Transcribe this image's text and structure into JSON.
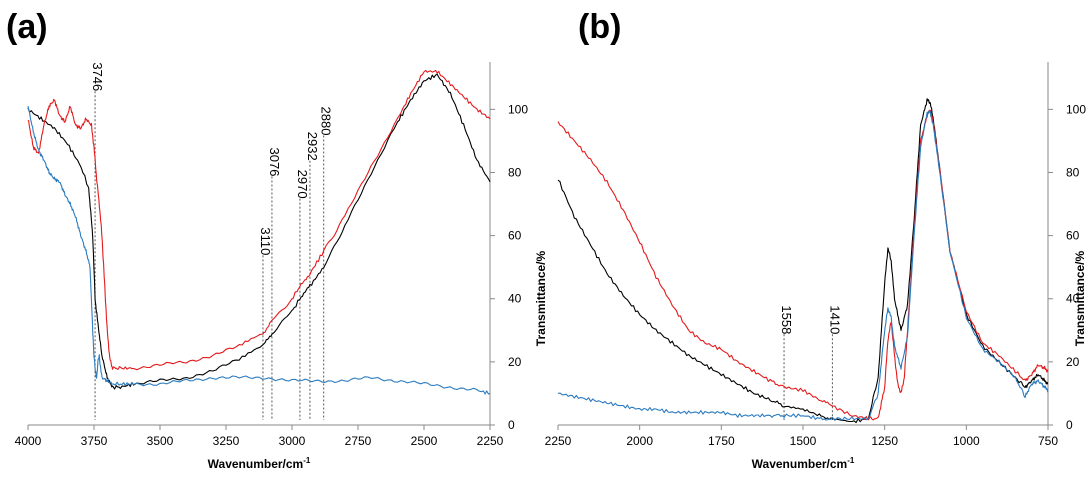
{
  "panel_labels": [
    "(a)",
    "(b)"
  ],
  "chart_data": [
    {
      "type": "line",
      "panel": "(a)",
      "xlabel": "Wavenumber/cm",
      "xlabel_superscript": "-1",
      "ylabel": "Transmittance/%",
      "xlim": [
        4000,
        2250
      ],
      "x_reversed": true,
      "ylim": [
        0,
        115
      ],
      "x_ticks": [
        4000,
        3750,
        3500,
        3250,
        3000,
        2750,
        2500,
        2250
      ],
      "y_ticks": [
        0,
        20,
        40,
        60,
        80,
        100
      ],
      "y_axis_side": "right",
      "grid": false,
      "colors": {
        "black": "#000000",
        "red": "#e41a1c",
        "blue": "#2b7bbf"
      },
      "annotations": [
        {
          "label": "3746",
          "x": 3746,
          "y_top": 107
        },
        {
          "label": "3110",
          "x": 3110,
          "y_top": 55
        },
        {
          "label": "3076",
          "x": 3076,
          "y_top": 80
        },
        {
          "label": "2970",
          "x": 2970,
          "y_top": 73
        },
        {
          "label": "2932",
          "x": 2932,
          "y_top": 85
        },
        {
          "label": "2880",
          "x": 2880,
          "y_top": 93
        }
      ],
      "series": [
        {
          "color": "black",
          "x": [
            4000,
            3950,
            3900,
            3850,
            3800,
            3770,
            3755,
            3746,
            3735,
            3720,
            3700,
            3680,
            3650,
            3600,
            3500,
            3400,
            3300,
            3200,
            3110,
            3076,
            3000,
            2970,
            2932,
            2880,
            2800,
            2700,
            2600,
            2550,
            2500,
            2450,
            2400,
            2350,
            2300,
            2250
          ],
          "y": [
            100,
            97,
            94,
            89,
            82,
            75,
            60,
            40,
            32,
            22,
            15,
            12,
            12,
            13,
            14,
            15,
            17,
            21,
            25,
            29,
            36,
            40,
            44,
            50,
            63,
            80,
            96,
            103,
            109,
            111,
            105,
            95,
            84,
            77
          ]
        },
        {
          "color": "red",
          "x": [
            4000,
            3980,
            3960,
            3940,
            3920,
            3900,
            3880,
            3860,
            3840,
            3820,
            3800,
            3780,
            3760,
            3750,
            3740,
            3730,
            3720,
            3710,
            3700,
            3690,
            3680,
            3650,
            3600,
            3500,
            3400,
            3300,
            3200,
            3110,
            3076,
            3000,
            2970,
            2932,
            2880,
            2800,
            2700,
            2600,
            2550,
            2500,
            2450,
            2400,
            2350,
            2300,
            2250
          ],
          "y": [
            97,
            88,
            86,
            95,
            101,
            103,
            98,
            96,
            101,
            95,
            94,
            97,
            95,
            88,
            78,
            70,
            60,
            45,
            30,
            21,
            18,
            18,
            18,
            19,
            20,
            22,
            25,
            29,
            33,
            40,
            44,
            48,
            55,
            66,
            82,
            97,
            105,
            112,
            112,
            108,
            104,
            100,
            97
          ]
        },
        {
          "color": "blue",
          "x": [
            4000,
            3980,
            3960,
            3940,
            3920,
            3900,
            3880,
            3860,
            3840,
            3820,
            3800,
            3780,
            3765,
            3755,
            3750,
            3745,
            3740,
            3735,
            3730,
            3725,
            3720,
            3700,
            3680,
            3650,
            3600,
            3500,
            3400,
            3300,
            3200,
            3100,
            3000,
            2900,
            2800,
            2700,
            2600,
            2500,
            2400,
            2300,
            2250
          ],
          "y": [
            101,
            93,
            87,
            84,
            80,
            78,
            77,
            73,
            70,
            66,
            60,
            55,
            50,
            30,
            22,
            17,
            15,
            20,
            22,
            18,
            15,
            14,
            13,
            13,
            13,
            13,
            14,
            15,
            15,
            15,
            14,
            14,
            14,
            15,
            14,
            13,
            12,
            11,
            10
          ]
        }
      ]
    },
    {
      "type": "line",
      "panel": "(b)",
      "xlabel": "Wavenumber/cm",
      "xlabel_superscript": "-1",
      "ylabel": "Transmittance/%",
      "xlim": [
        2250,
        750
      ],
      "x_reversed": true,
      "ylim": [
        0,
        115
      ],
      "x_ticks": [
        2250,
        2000,
        1750,
        1500,
        1250,
        1000,
        750
      ],
      "y_ticks": [
        0,
        20,
        40,
        60,
        80,
        100
      ],
      "y_axis_side": "right",
      "grid": false,
      "colors": {
        "black": "#000000",
        "red": "#e41a1c",
        "blue": "#2b7bbf"
      },
      "annotations": [
        {
          "label": "1558",
          "x": 1558,
          "y_top": 30
        },
        {
          "label": "1410",
          "x": 1410,
          "y_top": 30
        }
      ],
      "series": [
        {
          "color": "black",
          "x": [
            2250,
            2200,
            2150,
            2100,
            2050,
            2000,
            1950,
            1900,
            1850,
            1800,
            1750,
            1700,
            1650,
            1600,
            1558,
            1500,
            1450,
            1410,
            1350,
            1300,
            1270,
            1250,
            1240,
            1230,
            1220,
            1200,
            1180,
            1160,
            1140,
            1120,
            1110,
            1100,
            1080,
            1050,
            1000,
            950,
            900,
            850,
            820,
            800,
            780,
            760,
            750
          ],
          "y": [
            78,
            66,
            57,
            48,
            41,
            35,
            30,
            26,
            22,
            19,
            16,
            13,
            10,
            8,
            6,
            5,
            3,
            2,
            1,
            2,
            15,
            45,
            56,
            52,
            40,
            30,
            38,
            65,
            95,
            103,
            102,
            96,
            80,
            55,
            35,
            25,
            20,
            15,
            12,
            14,
            16,
            14,
            13
          ]
        },
        {
          "color": "red",
          "x": [
            2250,
            2200,
            2150,
            2100,
            2050,
            2000,
            1950,
            1900,
            1850,
            1800,
            1750,
            1700,
            1650,
            1600,
            1558,
            1500,
            1450,
            1410,
            1350,
            1300,
            1270,
            1250,
            1240,
            1230,
            1220,
            1210,
            1200,
            1190,
            1180,
            1160,
            1140,
            1120,
            1110,
            1100,
            1080,
            1050,
            1000,
            950,
            900,
            850,
            820,
            800,
            780,
            760,
            750
          ],
          "y": [
            96,
            90,
            84,
            77,
            68,
            58,
            47,
            38,
            30,
            26,
            24,
            20,
            17,
            14,
            12,
            11,
            8,
            6,
            3,
            2,
            2,
            12,
            27,
            33,
            22,
            13,
            10,
            15,
            30,
            62,
            90,
            98,
            100,
            95,
            80,
            55,
            36,
            26,
            22,
            17,
            14,
            16,
            19,
            18,
            17
          ]
        },
        {
          "color": "blue",
          "x": [
            2250,
            2200,
            2150,
            2100,
            2050,
            2000,
            1950,
            1900,
            1850,
            1800,
            1750,
            1700,
            1650,
            1600,
            1558,
            1500,
            1450,
            1410,
            1350,
            1300,
            1270,
            1250,
            1240,
            1230,
            1220,
            1200,
            1180,
            1160,
            1140,
            1120,
            1110,
            1100,
            1080,
            1050,
            1000,
            950,
            900,
            850,
            820,
            800,
            780,
            760,
            750
          ],
          "y": [
            10,
            9,
            8,
            7,
            6,
            5,
            5,
            4,
            4,
            4,
            4,
            3,
            3,
            3,
            3,
            3,
            2,
            2,
            2,
            2,
            10,
            30,
            37,
            34,
            25,
            18,
            28,
            60,
            88,
            99,
            99,
            94,
            79,
            55,
            34,
            24,
            20,
            15,
            9,
            13,
            14,
            12,
            11
          ]
        }
      ]
    }
  ]
}
